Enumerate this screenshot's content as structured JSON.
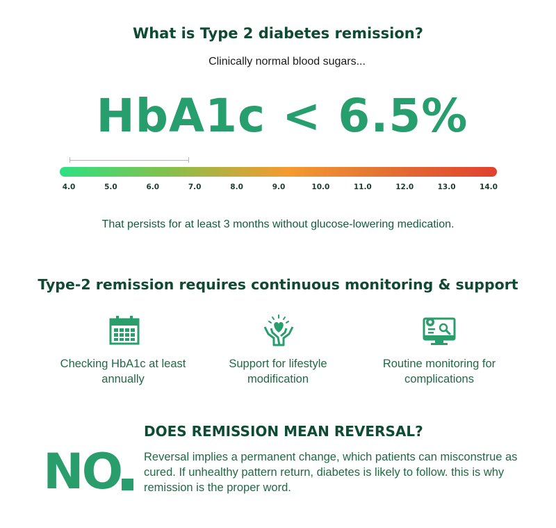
{
  "header": {
    "title": "What is Type 2 diabetes remission?",
    "subtitle": "Clinically normal blood sugars...",
    "headline": "HbA1c < 6.5%"
  },
  "scale": {
    "ticks": [
      "4.0",
      "5.0",
      "6.0",
      "7.0",
      "8.0",
      "9.0",
      "10.0",
      "11.0",
      "12.0",
      "13.0",
      "14.0"
    ],
    "min": 4.0,
    "max": 14.0,
    "highlight_range": [
      4.0,
      6.5
    ],
    "gradient_colors": [
      "#2ee083",
      "#86c04c",
      "#f59a2f",
      "#e57a33",
      "#e0412f"
    ]
  },
  "persist_text": "That persists for at least 3 months without glucose-lowering medication.",
  "monitoring": {
    "title": "Type-2 remission requires continuous monitoring & support",
    "items": [
      {
        "icon": "calendar-icon",
        "label": "Checking HbA1c at least annually"
      },
      {
        "icon": "hands-heart-icon",
        "label": "Support for lifestyle modification"
      },
      {
        "icon": "monitor-icon",
        "label": "Routine monitoring for complications"
      }
    ]
  },
  "reversal": {
    "title": "DOES REMISSION MEAN REVERSAL?",
    "answer": "NO",
    "explanation": "Reversal implies a  permanent change, which patients can misconstrue as cured. If unhealthy pattern return, diabetes is likely to follow. this is why remission is the proper word."
  },
  "colors": {
    "dark_green": "#0f4a33",
    "accent_green": "#279e6d"
  }
}
